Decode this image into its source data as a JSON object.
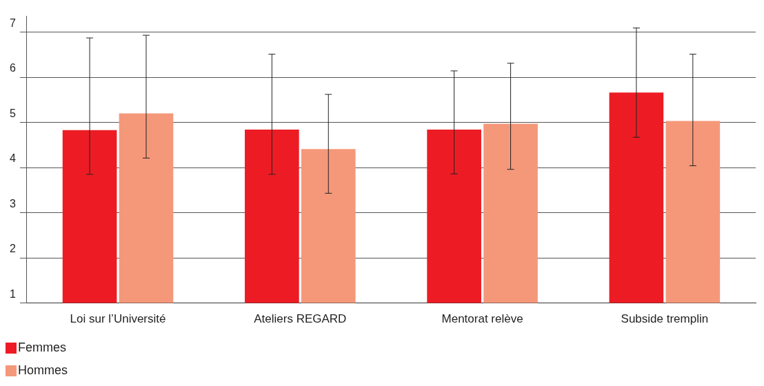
{
  "chart_data": {
    "type": "bar",
    "categories": [
      "Loi sur l’Université",
      "Ateliers REGARD",
      "Mentorat relève",
      "Subside tremplin"
    ],
    "series": [
      {
        "name": "Femmes",
        "color": "#ed1c24",
        "values": [
          4.83,
          4.84,
          4.84,
          5.66
        ],
        "errors": [
          [
            3.85,
            6.87
          ],
          [
            3.85,
            6.51
          ],
          [
            3.86,
            6.14
          ],
          [
            4.67,
            7.09
          ]
        ]
      },
      {
        "name": "Hommes",
        "color": "#f5987a",
        "values": [
          5.2,
          4.41,
          4.97,
          5.03
        ],
        "errors": [
          [
            4.21,
            6.93
          ],
          [
            3.43,
            5.62
          ],
          [
            3.96,
            6.31
          ],
          [
            4.04,
            6.51
          ]
        ]
      }
    ],
    "ylim": [
      1,
      7.35
    ],
    "yticks": [
      1,
      2,
      3,
      4,
      5,
      6,
      7
    ],
    "grid": "y",
    "legend": "bottom left"
  }
}
